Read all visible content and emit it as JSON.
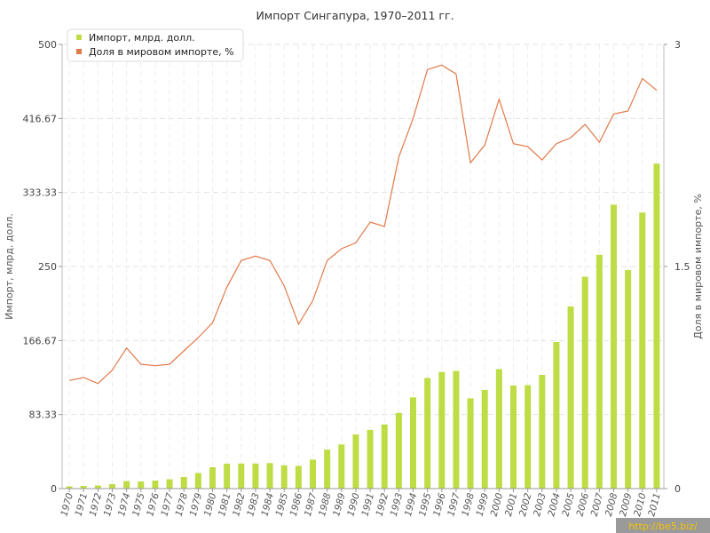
{
  "chart_data": {
    "type": "bar",
    "title": "Импорт Сингапура, 1970–2011 гг.",
    "ylabel": "Импорт, млрд. долл.",
    "y2label": "Доля в мировом импорте, %",
    "ylim": [
      0,
      500
    ],
    "y2lim": [
      0,
      3
    ],
    "yticks": [
      "0",
      "83.33",
      "166.67",
      "250",
      "333.33",
      "416.67",
      "500"
    ],
    "y2ticks": [
      "0",
      "1.5",
      "3"
    ],
    "grid": true,
    "legend_position": "top-left",
    "categories": [
      "1970",
      "1971",
      "1972",
      "1973",
      "1974",
      "1975",
      "1976",
      "1977",
      "1978",
      "1979",
      "1980",
      "1981",
      "1982",
      "1983",
      "1984",
      "1985",
      "1986",
      "1987",
      "1988",
      "1989",
      "1990",
      "1991",
      "1992",
      "1993",
      "1994",
      "1995",
      "1996",
      "1997",
      "1998",
      "1999",
      "2000",
      "2001",
      "2002",
      "2003",
      "2004",
      "2005",
      "2006",
      "2007",
      "2008",
      "2009",
      "2010",
      "2011"
    ],
    "series": [
      {
        "name": "Импорт, млрд. долл.",
        "type": "bar",
        "axis": "left",
        "color": "#bedd45",
        "values": [
          2.5,
          3,
          3.5,
          5,
          8.5,
          8,
          9,
          10.5,
          13,
          17.6,
          24,
          28,
          28.2,
          28.2,
          28.7,
          26.2,
          25.5,
          32.6,
          43.8,
          49.7,
          60.9,
          66.1,
          72.2,
          85.2,
          102.7,
          124.5,
          131.3,
          132.4,
          101.6,
          111.1,
          134.5,
          116,
          116.4,
          128,
          165,
          205,
          238.5,
          263.2,
          319.6,
          245.9,
          310.8,
          365.8
        ]
      },
      {
        "name": "Доля в мировом импорте, %",
        "type": "line",
        "axis": "right",
        "color": "#e07a4a",
        "values": [
          0.73,
          0.75,
          0.71,
          0.8,
          0.95,
          0.84,
          0.83,
          0.84,
          0.93,
          1.02,
          1.12,
          1.36,
          1.54,
          1.57,
          1.54,
          1.37,
          1.11,
          1.27,
          1.54,
          1.62,
          1.66,
          1.8,
          1.77,
          2.24,
          2.5,
          2.83,
          2.86,
          2.8,
          2.2,
          2.32,
          2.63,
          2.33,
          2.31,
          2.22,
          2.33,
          2.37,
          2.46,
          2.34,
          2.53,
          2.55,
          2.77,
          2.69
        ]
      }
    ]
  },
  "watermark": "http://be5.biz/"
}
